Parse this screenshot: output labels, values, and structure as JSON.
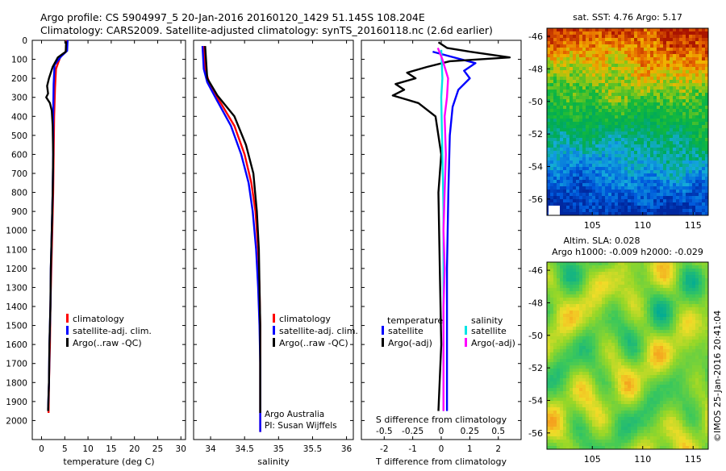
{
  "header": {
    "line1": "Argo profile: CS 5904997_5 20-Jan-2016 20160120_1429 51.145S 108.204E",
    "line2": "Climatology: CARS2009. Satellite-adjusted climatology: synTS_20160118.nc (2.6d earlier)"
  },
  "colors": {
    "climatology": "#ff0000",
    "satellite": "#0000ff",
    "argo": "#000000",
    "sat_salinity": "#00e5e5",
    "argo_salinity_adj": "#ff00ff"
  },
  "chart_data": [
    {
      "type": "line",
      "name": "temperature",
      "xlabel": "temperature (deg C)",
      "ylabel": "",
      "xlim": [
        -2,
        31
      ],
      "ylim": [
        2100,
        0
      ],
      "xticks": [
        0,
        5,
        10,
        15,
        20,
        25,
        30
      ],
      "yticks": [
        0,
        100,
        200,
        300,
        400,
        500,
        600,
        700,
        800,
        900,
        1000,
        1100,
        1200,
        1300,
        1400,
        1500,
        1600,
        1700,
        1800,
        1900,
        2000
      ],
      "legend": [
        "climatology",
        "satellite-adj. clim.",
        "Argo(..raw -QC)"
      ],
      "series": [
        {
          "name": "climatology",
          "color": "#ff0000",
          "points": [
            [
              5.4,
              0
            ],
            [
              5.2,
              60
            ],
            [
              4.0,
              90
            ],
            [
              3.1,
              150
            ],
            [
              2.9,
              250
            ],
            [
              2.7,
              400
            ],
            [
              2.6,
              600
            ],
            [
              2.5,
              800
            ],
            [
              2.3,
              1000
            ],
            [
              2.1,
              1200
            ],
            [
              1.9,
              1400
            ],
            [
              1.8,
              1600
            ],
            [
              1.6,
              1800
            ],
            [
              1.5,
              1960
            ]
          ]
        },
        {
          "name": "satellite-adj. clim.",
          "color": "#0000ff",
          "points": [
            [
              5.6,
              0
            ],
            [
              5.5,
              55
            ],
            [
              4.2,
              85
            ],
            [
              2.8,
              130
            ],
            [
              2.6,
              230
            ],
            [
              2.5,
              400
            ],
            [
              2.5,
              600
            ],
            [
              2.4,
              800
            ],
            [
              2.2,
              1000
            ],
            [
              2.0,
              1200
            ],
            [
              1.9,
              1400
            ],
            [
              1.7,
              1600
            ],
            [
              1.6,
              1800
            ],
            [
              1.4,
              1940
            ]
          ]
        },
        {
          "name": "Argo(..raw -QC)",
          "color": "#000000",
          "points": [
            [
              5.3,
              5
            ],
            [
              5.2,
              60
            ],
            [
              3.5,
              90
            ],
            [
              2.4,
              140
            ],
            [
              1.6,
              200
            ],
            [
              1.2,
              240
            ],
            [
              1.4,
              280
            ],
            [
              1.0,
              300
            ],
            [
              1.8,
              330
            ],
            [
              2.2,
              370
            ],
            [
              2.4,
              450
            ],
            [
              2.5,
              600
            ],
            [
              2.4,
              800
            ],
            [
              2.2,
              1000
            ],
            [
              2.0,
              1200
            ],
            [
              1.9,
              1400
            ],
            [
              1.7,
              1600
            ],
            [
              1.6,
              1800
            ],
            [
              1.4,
              1950
            ]
          ]
        }
      ]
    },
    {
      "type": "line",
      "name": "salinity",
      "xlabel": "salinity",
      "xlim": [
        33.75,
        36.1
      ],
      "ylim": [
        2100,
        0
      ],
      "xticks": [
        34,
        34.5,
        35,
        35.5,
        36
      ],
      "legend": [
        "climatology",
        "satellite-adj. clim.",
        "Argo(..raw -QC)"
      ],
      "annotations": [
        "Argo Australia",
        "PI: Susan Wijffels"
      ],
      "series": [
        {
          "name": "climatology",
          "color": "#ff0000",
          "points": [
            [
              33.9,
              30
            ],
            [
              33.92,
              150
            ],
            [
              34.0,
              250
            ],
            [
              34.15,
              330
            ],
            [
              34.35,
              450
            ],
            [
              34.5,
              600
            ],
            [
              34.6,
              750
            ],
            [
              34.66,
              900
            ],
            [
              34.7,
              1100
            ],
            [
              34.72,
              1300
            ],
            [
              34.73,
              1500
            ],
            [
              34.73,
              1700
            ],
            [
              34.73,
              1900
            ],
            [
              34.73,
              2060
            ]
          ]
        },
        {
          "name": "satellite-adj. clim.",
          "color": "#0000ff",
          "points": [
            [
              33.88,
              30
            ],
            [
              33.9,
              150
            ],
            [
              33.95,
              220
            ],
            [
              34.1,
              320
            ],
            [
              34.3,
              450
            ],
            [
              34.45,
              600
            ],
            [
              34.56,
              750
            ],
            [
              34.62,
              900
            ],
            [
              34.67,
              1100
            ],
            [
              34.7,
              1300
            ],
            [
              34.72,
              1500
            ],
            [
              34.73,
              1700
            ],
            [
              34.73,
              1900
            ],
            [
              34.73,
              2060
            ]
          ]
        },
        {
          "name": "Argo(..raw -QC)",
          "color": "#000000",
          "points": [
            [
              33.92,
              30
            ],
            [
              33.95,
              200
            ],
            [
              34.1,
              290
            ],
            [
              34.35,
              400
            ],
            [
              34.52,
              550
            ],
            [
              34.63,
              700
            ],
            [
              34.68,
              900
            ],
            [
              34.71,
              1100
            ],
            [
              34.72,
              1300
            ],
            [
              34.73,
              1500
            ],
            [
              34.73,
              1700
            ],
            [
              34.73,
              1960
            ]
          ]
        }
      ]
    },
    {
      "type": "line",
      "name": "difference",
      "xlabel": "T difference from climatology",
      "x2label": "S difference from climatology",
      "xlim": [
        -2.8,
        2.8
      ],
      "x2lim": [
        -0.7,
        0.7
      ],
      "ylim": [
        2100,
        0
      ],
      "xticks": [
        -2,
        -1,
        0,
        1,
        2
      ],
      "x2ticks": [
        -0.5,
        -0.25,
        0,
        0.25,
        0.5
      ],
      "legend_titles": [
        "temperature",
        "salinity"
      ],
      "legend": [
        "satellite",
        "Argo(-adj)",
        "satellite",
        "Argo(-adj)"
      ],
      "series": [
        {
          "name": "temperature satellite",
          "axis": "T",
          "color": "#0000ff",
          "points": [
            [
              -0.3,
              60
            ],
            [
              0.2,
              80
            ],
            [
              1.2,
              120
            ],
            [
              0.8,
              160
            ],
            [
              1.0,
              200
            ],
            [
              0.6,
              260
            ],
            [
              0.4,
              350
            ],
            [
              0.3,
              500
            ],
            [
              0.25,
              800
            ],
            [
              0.2,
              1200
            ],
            [
              0.2,
              1600
            ],
            [
              0.2,
              1950
            ]
          ]
        },
        {
          "name": "temperature Argo(-adj)",
          "axis": "T",
          "color": "#000000",
          "points": [
            [
              -0.1,
              10
            ],
            [
              0.2,
              40
            ],
            [
              1.0,
              60
            ],
            [
              2.4,
              90
            ],
            [
              0.3,
              110
            ],
            [
              -0.5,
              140
            ],
            [
              -1.2,
              170
            ],
            [
              -0.9,
              200
            ],
            [
              -1.6,
              230
            ],
            [
              -1.3,
              260
            ],
            [
              -1.7,
              290
            ],
            [
              -0.8,
              330
            ],
            [
              -0.2,
              400
            ],
            [
              0,
              600
            ],
            [
              -0.1,
              800
            ],
            [
              -0.05,
              1200
            ],
            [
              0,
              1600
            ],
            [
              -0.1,
              1950
            ]
          ]
        },
        {
          "name": "salinity satellite",
          "axis": "S",
          "color": "#00e5e5",
          "points": [
            [
              0,
              50
            ],
            [
              0.01,
              200
            ],
            [
              0.0,
              300
            ],
            [
              0.01,
              600
            ],
            [
              0.02,
              900
            ],
            [
              0.02,
              1200
            ],
            [
              0.02,
              1500
            ],
            [
              0.02,
              1950
            ]
          ]
        },
        {
          "name": "salinity Argo(-adj)",
          "axis": "S",
          "color": "#ff00ff",
          "points": [
            [
              -0.03,
              40
            ],
            [
              0.01,
              100
            ],
            [
              0.06,
              200
            ],
            [
              0.05,
              300
            ],
            [
              0.03,
              400
            ],
            [
              0.04,
              600
            ],
            [
              0.03,
              800
            ],
            [
              0.02,
              1000
            ],
            [
              0.03,
              1200
            ],
            [
              0.02,
              1400
            ],
            [
              0.02,
              1600
            ],
            [
              0.02,
              1950
            ]
          ]
        }
      ]
    },
    {
      "type": "heatmap",
      "name": "sst-map",
      "title": "sat. SST: 4.76 Argo: 5.17",
      "xlim": [
        100.5,
        116.5
      ],
      "ylim": [
        -57,
        -45.5
      ],
      "xticks": [
        105,
        110,
        115
      ],
      "yticks": [
        -46,
        -48,
        -50,
        -52,
        -54,
        -56
      ]
    },
    {
      "type": "heatmap",
      "name": "sla-map",
      "title_line1": "Altim. SLA: 0.028",
      "title_line2": "Argo h1000: -0.009 h2000: -0.029",
      "xlim": [
        100.5,
        116.5
      ],
      "ylim": [
        -57,
        -45.5
      ],
      "xticks": [
        105,
        110,
        115
      ],
      "yticks": [
        -46,
        -48,
        -50,
        -52,
        -54,
        -56
      ]
    }
  ],
  "footer_stamp": "©IMOS 25-Jan-2016 20:41:04"
}
